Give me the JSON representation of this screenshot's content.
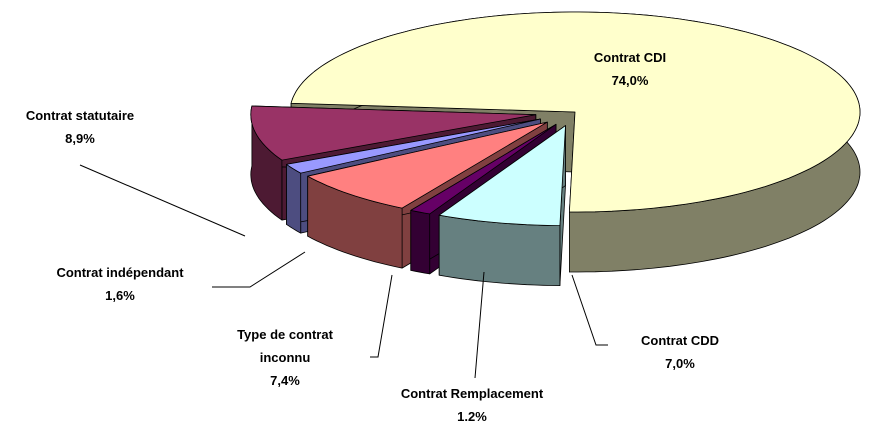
{
  "chart_data": {
    "type": "pie3d",
    "categories": [
      "Contrat CDI",
      "Contrat CDD",
      "Contrat Remplacement",
      "Type de contrat inconnu",
      "Contrat indépendant",
      "Contrat statutaire"
    ],
    "values": [
      74.0,
      7.0,
      1.2,
      7.4,
      1.6,
      8.9
    ],
    "value_labels": [
      "74,0%",
      "7,0%",
      "1,2%",
      "7,4%",
      "1,6%",
      "8,9%"
    ],
    "colors": [
      "#ffffcc",
      "#ccffff",
      "#660066",
      "#ff8080",
      "#9999ff",
      "#993366"
    ]
  }
}
